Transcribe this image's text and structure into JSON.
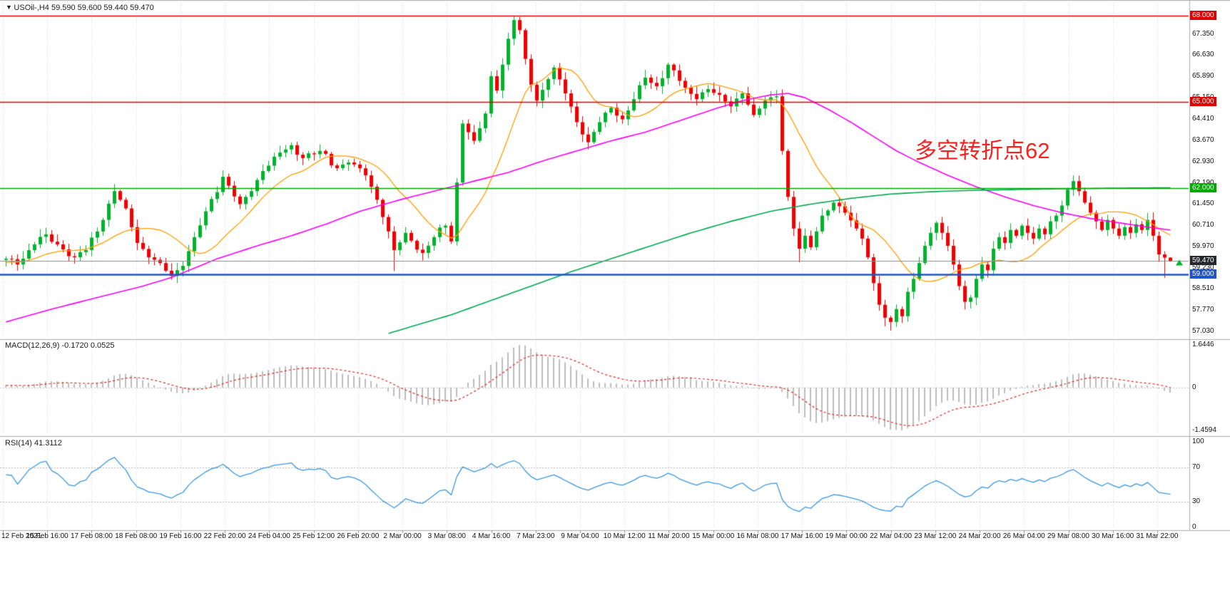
{
  "header": {
    "collapse_icon": "▼",
    "title": "USOil-,H4 59.590 59.600 59.440 59.470"
  },
  "annotation": {
    "text": "多空转折点62",
    "color": "#ff1f1f"
  },
  "price_axis": {
    "ticks": [
      "67.350",
      "66.630",
      "65.890",
      "65.150",
      "64.410",
      "63.670",
      "62.930",
      "62.190",
      "61.450",
      "60.710",
      "59.970",
      "59.230",
      "58.510",
      "57.770",
      "57.030"
    ],
    "levels": [
      {
        "value": 68.0,
        "label": "68.000",
        "bg": "#e00000",
        "line": "#e00000",
        "width": 1.6
      },
      {
        "value": 65.0,
        "label": "65.000",
        "bg": "#e00000",
        "line": "#e00000",
        "width": 1.6
      },
      {
        "value": 62.0,
        "label": "62.000",
        "bg": "#00a800",
        "line": "#00a800",
        "width": 1.6
      },
      {
        "value": 59.0,
        "label": "59.000",
        "bg": "#1e56c8",
        "line": "#1e56c8",
        "width": 2.4
      }
    ],
    "current": {
      "value": 59.47,
      "label": "59.470",
      "bg": "#26262d",
      "line": "#8c8c8c"
    }
  },
  "time_axis": {
    "labels": [
      "12 Feb 2021",
      "15 Feb 16:00",
      "17 Feb 08:00",
      "18 Feb 08:00",
      "19 Feb 16:00",
      "22 Feb 20:00",
      "24 Feb 04:00",
      "25 Feb 12:00",
      "26 Feb 20:00",
      "2 Mar 00:00",
      "3 Mar 08:00",
      "4 Mar 16:00",
      "7 Mar 23:00",
      "9 Mar 04:00",
      "10 Mar 12:00",
      "11 Mar 20:00",
      "15 Mar 00:00",
      "16 Mar 08:00",
      "17 Mar 16:00",
      "19 Mar 00:00",
      "22 Mar 04:00",
      "23 Mar 12:00",
      "24 Mar 20:00",
      "26 Mar 04:00",
      "29 Mar 08:00",
      "30 Mar 16:00",
      "31 Mar 22:00"
    ]
  },
  "macd": {
    "label": "MACD(12,26,9) -0.1720 0.0525",
    "axis_ticks": [
      "1.6446",
      "0",
      "-1.4594"
    ],
    "histogram_color": "#bdbdbd",
    "signal_color": "#e02020"
  },
  "rsi": {
    "label": "RSI(14) 41.3112",
    "axis_ticks": [
      "100",
      "70",
      "30",
      "0"
    ],
    "levels": [
      70,
      30
    ],
    "color": "#3a97e0"
  },
  "chart_data": {
    "type": "candlestick",
    "symbol": "USOil-",
    "timeframe": "H4",
    "ohlc": {
      "open": 59.59,
      "high": 59.6,
      "low": 59.44,
      "close": 59.47
    },
    "y_range": [
      56.95,
      68.4
    ],
    "candle_count": 205,
    "colors": {
      "up": "#00b22c",
      "down": "#f20000"
    },
    "price_waypoints": [
      [
        -20,
        59.2
      ],
      [
        -14,
        59.45
      ],
      [
        -8,
        59.3
      ],
      [
        -4,
        59.5
      ],
      [
        0,
        59.55
      ],
      [
        2,
        59.35
      ],
      [
        5,
        60.05
      ],
      [
        7,
        60.4
      ],
      [
        9,
        60.05
      ],
      [
        12,
        59.6
      ],
      [
        14,
        59.85
      ],
      [
        17,
        60.9
      ],
      [
        19,
        61.9
      ],
      [
        21,
        61.3
      ],
      [
        23,
        60.1
      ],
      [
        25,
        59.6
      ],
      [
        27,
        59.4
      ],
      [
        29,
        58.95
      ],
      [
        31,
        59.3
      ],
      [
        33,
        60.3
      ],
      [
        35,
        61.2
      ],
      [
        38,
        62.4
      ],
      [
        41,
        61.45
      ],
      [
        43,
        61.9
      ],
      [
        45,
        62.6
      ],
      [
        47,
        63.1
      ],
      [
        50,
        63.5
      ],
      [
        52,
        63.05
      ],
      [
        55,
        63.3
      ],
      [
        58,
        62.7
      ],
      [
        60,
        62.9
      ],
      [
        63,
        62.45
      ],
      [
        65,
        61.6
      ],
      [
        66,
        61.0
      ],
      [
        68,
        59.85
      ],
      [
        70,
        60.45
      ],
      [
        73,
        59.75
      ],
      [
        75,
        60.3
      ],
      [
        77,
        60.7
      ],
      [
        78,
        60.15
      ],
      [
        79,
        62.2
      ],
      [
        80,
        64.25
      ],
      [
        82,
        63.65
      ],
      [
        84,
        64.6
      ],
      [
        85,
        65.9
      ],
      [
        86,
        65.4
      ],
      [
        87,
        66.3
      ],
      [
        88,
        67.2
      ],
      [
        89,
        67.85
      ],
      [
        90,
        67.5
      ],
      [
        91,
        66.5
      ],
      [
        92,
        65.6
      ],
      [
        93,
        65.05
      ],
      [
        95,
        65.8
      ],
      [
        96,
        66.2
      ],
      [
        98,
        65.3
      ],
      [
        100,
        64.3
      ],
      [
        102,
        63.6
      ],
      [
        104,
        64.3
      ],
      [
        106,
        64.8
      ],
      [
        108,
        64.4
      ],
      [
        110,
        65.1
      ],
      [
        112,
        65.85
      ],
      [
        114,
        65.55
      ],
      [
        116,
        66.3
      ],
      [
        117,
        66.1
      ],
      [
        119,
        65.5
      ],
      [
        121,
        65.1
      ],
      [
        123,
        65.45
      ],
      [
        125,
        65.25
      ],
      [
        127,
        64.85
      ],
      [
        129,
        65.3
      ],
      [
        131,
        64.55
      ],
      [
        133,
        65.05
      ],
      [
        135,
        65.2
      ],
      [
        136,
        63.3
      ],
      [
        137,
        61.7
      ],
      [
        138,
        60.6
      ],
      [
        139,
        59.9
      ],
      [
        140,
        60.35
      ],
      [
        141,
        59.95
      ],
      [
        142,
        60.5
      ],
      [
        143,
        61.05
      ],
      [
        145,
        61.5
      ],
      [
        147,
        61.15
      ],
      [
        149,
        60.6
      ],
      [
        150,
        60.25
      ],
      [
        151,
        59.6
      ],
      [
        152,
        58.7
      ],
      [
        153,
        57.95
      ],
      [
        154,
        57.5
      ],
      [
        155,
        57.35
      ],
      [
        156,
        57.8
      ],
      [
        157,
        57.55
      ],
      [
        158,
        58.4
      ],
      [
        159,
        58.85
      ],
      [
        160,
        59.4
      ],
      [
        161,
        60.0
      ],
      [
        162,
        60.45
      ],
      [
        163,
        60.8
      ],
      [
        164,
        60.45
      ],
      [
        165,
        60.0
      ],
      [
        166,
        59.35
      ],
      [
        167,
        58.6
      ],
      [
        168,
        58.05
      ],
      [
        169,
        58.2
      ],
      [
        170,
        58.85
      ],
      [
        171,
        59.35
      ],
      [
        172,
        59.15
      ],
      [
        173,
        59.9
      ],
      [
        174,
        60.3
      ],
      [
        175,
        60.1
      ],
      [
        176,
        60.55
      ],
      [
        177,
        60.35
      ],
      [
        178,
        60.7
      ],
      [
        179,
        60.45
      ],
      [
        180,
        60.25
      ],
      [
        181,
        60.6
      ],
      [
        182,
        60.4
      ],
      [
        183,
        60.85
      ],
      [
        184,
        61.05
      ],
      [
        185,
        61.4
      ],
      [
        186,
        61.95
      ],
      [
        187,
        62.25
      ],
      [
        188,
        61.9
      ],
      [
        189,
        61.5
      ],
      [
        190,
        61.15
      ],
      [
        191,
        60.85
      ],
      [
        192,
        60.55
      ],
      [
        193,
        60.9
      ],
      [
        194,
        60.6
      ],
      [
        195,
        60.35
      ],
      [
        196,
        60.65
      ],
      [
        197,
        60.45
      ],
      [
        198,
        60.75
      ],
      [
        199,
        60.55
      ],
      [
        200,
        60.9
      ],
      [
        201,
        60.35
      ],
      [
        202,
        59.7
      ],
      [
        203,
        59.59
      ],
      [
        204,
        59.47
      ]
    ],
    "candle_overrides": {
      "19": {
        "h": 62.15
      },
      "29": {
        "l": 58.82
      },
      "68": {
        "l": 59.12
      },
      "89": {
        "h": 68.0
      },
      "90": {
        "h": 67.96
      },
      "102": {
        "l": 63.35
      },
      "139": {
        "l": 59.42
      },
      "154": {
        "l": 57.2
      },
      "155": {
        "l": 57.05
      },
      "168": {
        "l": 57.78
      },
      "169": {
        "l": 57.82
      },
      "187": {
        "h": 62.45
      },
      "203": {
        "l": 58.88
      },
      "204": {
        "o": 59.59,
        "h": 59.6,
        "l": 59.44,
        "c": 59.47
      }
    },
    "ma": {
      "orange": {
        "period": 13,
        "color": "#ff9d00"
      },
      "magenta": {
        "color": "#f800f8",
        "points": [
          [
            0,
            57.35
          ],
          [
            8,
            57.8
          ],
          [
            16,
            58.2
          ],
          [
            24,
            58.6
          ],
          [
            29,
            58.9
          ],
          [
            37,
            59.55
          ],
          [
            44,
            60.0
          ],
          [
            50,
            60.35
          ],
          [
            56,
            60.75
          ],
          [
            62,
            61.2
          ],
          [
            69,
            61.6
          ],
          [
            75,
            61.9
          ],
          [
            81,
            62.2
          ],
          [
            88,
            62.55
          ],
          [
            94,
            62.95
          ],
          [
            100,
            63.3
          ],
          [
            106,
            63.65
          ],
          [
            112,
            63.95
          ],
          [
            118,
            64.35
          ],
          [
            124,
            64.75
          ],
          [
            129,
            65.05
          ],
          [
            134,
            65.25
          ],
          [
            137,
            65.3
          ],
          [
            140,
            65.15
          ],
          [
            144,
            64.75
          ],
          [
            148,
            64.3
          ],
          [
            152,
            63.8
          ],
          [
            156,
            63.3
          ],
          [
            160,
            62.9
          ],
          [
            165,
            62.45
          ],
          [
            170,
            62.05
          ],
          [
            175,
            61.7
          ],
          [
            180,
            61.4
          ],
          [
            185,
            61.15
          ],
          [
            190,
            60.95
          ],
          [
            195,
            60.8
          ],
          [
            200,
            60.65
          ],
          [
            204,
            60.55
          ]
        ]
      },
      "green": {
        "color": "#00a94f",
        "points": [
          [
            67,
            56.95
          ],
          [
            72,
            57.25
          ],
          [
            78,
            57.6
          ],
          [
            85,
            58.1
          ],
          [
            92,
            58.6
          ],
          [
            99,
            59.1
          ],
          [
            106,
            59.55
          ],
          [
            113,
            60.0
          ],
          [
            120,
            60.45
          ],
          [
            127,
            60.85
          ],
          [
            134,
            61.2
          ],
          [
            141,
            61.45
          ],
          [
            148,
            61.65
          ],
          [
            155,
            61.8
          ],
          [
            162,
            61.88
          ],
          [
            170,
            61.93
          ],
          [
            180,
            61.97
          ],
          [
            192,
            62.0
          ],
          [
            204,
            62.02
          ]
        ]
      }
    }
  }
}
